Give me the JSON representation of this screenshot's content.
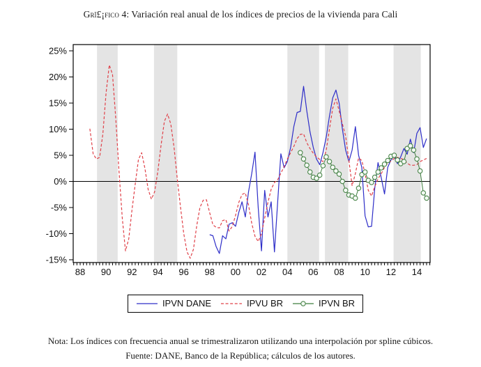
{
  "page": {
    "title_sc": "Grī£¡fico 4:",
    "title_rest": " Variación real anual de los índices de precios de la vivienda para Cali",
    "note1": "Nota: Los índices con frecuencia anual se trimestralizaron utilizando una interpolación por spline cúbicos.",
    "note2": "Fuente: DANE, Banco de la República; cálculos de los autores."
  },
  "legend": {
    "items": [
      {
        "label": "IPVN DANE",
        "color": "#2d2dc8",
        "line_style": "solid",
        "marker": "none"
      },
      {
        "label": "IPVU BR",
        "color": "#e04048",
        "line_style": "dashed",
        "marker": "none"
      },
      {
        "label": "IPVN BR",
        "color": "#3e7d3e",
        "line_style": "solid",
        "marker": "circle"
      }
    ]
  },
  "chart_data": {
    "type": "line",
    "title": "Variación real anual de los índices de precios de la vivienda para Cali",
    "xlabel": "",
    "ylabel": "",
    "x_unit": "year, quarterly observations",
    "xlim": [
      1987.45,
      2015.0
    ],
    "ylim": [
      -15.5,
      26.2
    ],
    "grid": false,
    "legend_position": "bottom-center",
    "band_color": "#e4e4e4",
    "shaded_bands": [
      [
        1989.3,
        1990.9
      ],
      [
        1993.7,
        1995.5
      ],
      [
        2004.0,
        2006.45
      ],
      [
        2006.9,
        2008.7
      ],
      [
        2012.2,
        2014.3
      ]
    ],
    "y_ticks": [
      {
        "v": 25,
        "label": "25%"
      },
      {
        "v": 20,
        "label": "20%"
      },
      {
        "v": 15,
        "label": "15%"
      },
      {
        "v": 10,
        "label": "10%"
      },
      {
        "v": 5,
        "label": "5%"
      },
      {
        "v": 0,
        "label": "0%"
      },
      {
        "v": -5,
        "label": "-5%"
      },
      {
        "v": -10,
        "label": "-10%"
      },
      {
        "v": -15,
        "label": "-15%"
      }
    ],
    "x_ticks": [
      {
        "v": 1988,
        "label": "88"
      },
      {
        "v": 1990,
        "label": "90"
      },
      {
        "v": 1992,
        "label": "92"
      },
      {
        "v": 1994,
        "label": "94"
      },
      {
        "v": 1996,
        "label": "96"
      },
      {
        "v": 1998,
        "label": "98"
      },
      {
        "v": 2000,
        "label": "00"
      },
      {
        "v": 2002,
        "label": "02"
      },
      {
        "v": 2004,
        "label": "04"
      },
      {
        "v": 2006,
        "label": "06"
      },
      {
        "v": 2008,
        "label": "08"
      },
      {
        "v": 2010,
        "label": "10"
      },
      {
        "v": 2012,
        "label": "12"
      },
      {
        "v": 2014,
        "label": "14"
      }
    ],
    "series": [
      {
        "name": "IPVN DANE",
        "color": "#2d2dc8",
        "line_style": "solid",
        "marker": "none",
        "points": [
          [
            1998.0,
            -10.2
          ],
          [
            1998.25,
            -10.4
          ],
          [
            1998.5,
            -12.5
          ],
          [
            1998.75,
            -13.8
          ],
          [
            1999.0,
            -10.4
          ],
          [
            1999.25,
            -11.0
          ],
          [
            1999.5,
            -8.2
          ],
          [
            1999.75,
            -7.9
          ],
          [
            2000.0,
            -8.6
          ],
          [
            2000.25,
            -5.9
          ],
          [
            2000.5,
            -3.9
          ],
          [
            2000.75,
            -6.8
          ],
          [
            2001.0,
            -2.0
          ],
          [
            2001.25,
            1.5
          ],
          [
            2001.5,
            5.6
          ],
          [
            2001.75,
            -5.0
          ],
          [
            2002.0,
            -13.3
          ],
          [
            2002.25,
            -1.7
          ],
          [
            2002.5,
            -6.8
          ],
          [
            2002.75,
            -3.9
          ],
          [
            2003.0,
            -13.5
          ],
          [
            2003.25,
            -4.0
          ],
          [
            2003.5,
            5.3
          ],
          [
            2003.75,
            2.6
          ],
          [
            2004.0,
            3.8
          ],
          [
            2004.25,
            6.5
          ],
          [
            2004.5,
            10.5
          ],
          [
            2004.75,
            13.2
          ],
          [
            2005.0,
            13.4
          ],
          [
            2005.25,
            18.2
          ],
          [
            2005.5,
            13.5
          ],
          [
            2005.75,
            9.5
          ],
          [
            2006.0,
            6.5
          ],
          [
            2006.25,
            4.3
          ],
          [
            2006.5,
            3.2
          ],
          [
            2006.75,
            5.5
          ],
          [
            2007.0,
            8.5
          ],
          [
            2007.25,
            12.5
          ],
          [
            2007.5,
            16.0
          ],
          [
            2007.75,
            17.5
          ],
          [
            2008.0,
            15.0
          ],
          [
            2008.25,
            10.0
          ],
          [
            2008.5,
            6.0
          ],
          [
            2008.75,
            3.8
          ],
          [
            2009.0,
            6.0
          ],
          [
            2009.25,
            10.5
          ],
          [
            2009.5,
            5.0
          ],
          [
            2009.75,
            2.7
          ],
          [
            2010.0,
            -6.6
          ],
          [
            2010.25,
            -8.7
          ],
          [
            2010.5,
            -8.6
          ],
          [
            2010.75,
            -1.3
          ],
          [
            2011.0,
            3.6
          ],
          [
            2011.25,
            0.7
          ],
          [
            2011.5,
            -2.4
          ],
          [
            2011.75,
            2.7
          ],
          [
            2012.0,
            4.1
          ],
          [
            2012.25,
            4.9
          ],
          [
            2012.5,
            3.4
          ],
          [
            2012.75,
            4.7
          ],
          [
            2013.0,
            6.3
          ],
          [
            2013.25,
            5.2
          ],
          [
            2013.5,
            8.1
          ],
          [
            2013.75,
            5.5
          ],
          [
            2014.0,
            9.2
          ],
          [
            2014.25,
            10.3
          ],
          [
            2014.5,
            6.5
          ],
          [
            2014.75,
            8.2
          ]
        ]
      },
      {
        "name": "IPVU BR",
        "color": "#e04048",
        "line_style": "dashed",
        "marker": "none",
        "points": [
          [
            1988.75,
            10.1
          ],
          [
            1989.0,
            5.3
          ],
          [
            1989.25,
            4.3
          ],
          [
            1989.5,
            4.6
          ],
          [
            1989.75,
            9.0
          ],
          [
            1990.0,
            17.0
          ],
          [
            1990.25,
            22.3
          ],
          [
            1990.5,
            20.5
          ],
          [
            1990.75,
            12.0
          ],
          [
            1991.0,
            2.0
          ],
          [
            1991.25,
            -7.0
          ],
          [
            1991.5,
            -13.3
          ],
          [
            1991.75,
            -11.0
          ],
          [
            1992.0,
            -5.5
          ],
          [
            1992.25,
            -0.5
          ],
          [
            1992.5,
            4.2
          ],
          [
            1992.75,
            5.5
          ],
          [
            1993.0,
            2.5
          ],
          [
            1993.25,
            -1.5
          ],
          [
            1993.5,
            -3.4
          ],
          [
            1993.75,
            -2.0
          ],
          [
            1994.0,
            2.0
          ],
          [
            1994.25,
            7.0
          ],
          [
            1994.5,
            11.5
          ],
          [
            1994.75,
            12.9
          ],
          [
            1995.0,
            11.0
          ],
          [
            1995.25,
            6.5
          ],
          [
            1995.5,
            0.5
          ],
          [
            1995.75,
            -5.0
          ],
          [
            1996.0,
            -10.0
          ],
          [
            1996.25,
            -13.5
          ],
          [
            1996.5,
            -14.7
          ],
          [
            1996.75,
            -13.0
          ],
          [
            1997.0,
            -8.5
          ],
          [
            1997.25,
            -5.0
          ],
          [
            1997.5,
            -3.6
          ],
          [
            1997.75,
            -3.5
          ],
          [
            1998.0,
            -6.0
          ],
          [
            1998.25,
            -8.3
          ],
          [
            1998.5,
            -8.8
          ],
          [
            1998.75,
            -8.9
          ],
          [
            1999.0,
            -7.5
          ],
          [
            1999.25,
            -7.3
          ],
          [
            1999.5,
            -9.5
          ],
          [
            1999.75,
            -8.6
          ],
          [
            2000.0,
            -6.5
          ],
          [
            2000.25,
            -4.0
          ],
          [
            2000.5,
            -2.5
          ],
          [
            2000.75,
            -2.2
          ],
          [
            2001.0,
            -4.5
          ],
          [
            2001.25,
            -8.0
          ],
          [
            2001.5,
            -10.5
          ],
          [
            2001.75,
            -11.5
          ],
          [
            2002.0,
            -10.0
          ],
          [
            2002.25,
            -7.0
          ],
          [
            2002.5,
            -4.0
          ],
          [
            2002.75,
            -1.5
          ],
          [
            2003.0,
            -0.2
          ],
          [
            2003.25,
            0.3
          ],
          [
            2003.5,
            1.6
          ],
          [
            2003.75,
            2.8
          ],
          [
            2004.0,
            4.3
          ],
          [
            2004.25,
            5.5
          ],
          [
            2004.5,
            6.7
          ],
          [
            2004.75,
            8.2
          ],
          [
            2005.0,
            9.0
          ],
          [
            2005.25,
            9.1
          ],
          [
            2005.5,
            7.4
          ],
          [
            2005.75,
            6.3
          ],
          [
            2006.0,
            5.4
          ],
          [
            2006.25,
            4.7
          ],
          [
            2006.5,
            4.2
          ],
          [
            2006.75,
            3.8
          ],
          [
            2007.0,
            6.0
          ],
          [
            2007.25,
            10.0
          ],
          [
            2007.5,
            14.0
          ],
          [
            2007.75,
            15.8
          ],
          [
            2008.0,
            13.5
          ],
          [
            2008.25,
            11.0
          ],
          [
            2008.5,
            8.7
          ],
          [
            2008.75,
            4.0
          ],
          [
            2009.0,
            -0.8
          ],
          [
            2009.25,
            1.5
          ],
          [
            2009.5,
            4.5
          ],
          [
            2009.75,
            4.0
          ],
          [
            2010.0,
            1.5
          ],
          [
            2010.25,
            -1.7
          ],
          [
            2010.5,
            -2.8
          ],
          [
            2010.75,
            -1.0
          ],
          [
            2011.0,
            0.5
          ],
          [
            2011.25,
            1.5
          ],
          [
            2011.5,
            2.7
          ],
          [
            2011.75,
            3.5
          ],
          [
            2012.0,
            3.9
          ],
          [
            2012.25,
            4.4
          ],
          [
            2012.5,
            4.6
          ],
          [
            2012.75,
            4.4
          ],
          [
            2013.0,
            4.2
          ],
          [
            2013.25,
            3.5
          ],
          [
            2013.5,
            3.1
          ],
          [
            2013.75,
            3.1
          ],
          [
            2014.0,
            3.2
          ],
          [
            2014.25,
            3.8
          ],
          [
            2014.5,
            4.1
          ],
          [
            2014.75,
            4.4
          ]
        ]
      },
      {
        "name": "IPVN BR",
        "color": "#3e7d3e",
        "line_style": "solid",
        "marker": "circle",
        "marker_fill": "#f3f9f3",
        "points": [
          [
            2005.0,
            5.5
          ],
          [
            2005.25,
            4.3
          ],
          [
            2005.5,
            3.1
          ],
          [
            2005.75,
            1.8
          ],
          [
            2006.0,
            0.8
          ],
          [
            2006.25,
            0.6
          ],
          [
            2006.5,
            1.2
          ],
          [
            2006.75,
            3.0
          ],
          [
            2007.0,
            4.7
          ],
          [
            2007.25,
            3.8
          ],
          [
            2007.5,
            2.7
          ],
          [
            2007.75,
            2.0
          ],
          [
            2008.0,
            1.4
          ],
          [
            2008.25,
            0.0
          ],
          [
            2008.5,
            -1.7
          ],
          [
            2008.75,
            -2.6
          ],
          [
            2009.0,
            -2.8
          ],
          [
            2009.25,
            -3.2
          ],
          [
            2009.5,
            -1.3
          ],
          [
            2009.75,
            1.3
          ],
          [
            2010.0,
            1.8
          ],
          [
            2010.25,
            0.2
          ],
          [
            2010.5,
            -0.2
          ],
          [
            2010.75,
            0.8
          ],
          [
            2011.0,
            1.8
          ],
          [
            2011.25,
            2.6
          ],
          [
            2011.5,
            3.3
          ],
          [
            2011.75,
            4.0
          ],
          [
            2012.0,
            4.8
          ],
          [
            2012.25,
            5.0
          ],
          [
            2012.5,
            4.1
          ],
          [
            2012.75,
            3.4
          ],
          [
            2013.0,
            3.8
          ],
          [
            2013.25,
            6.3
          ],
          [
            2013.5,
            6.8
          ],
          [
            2013.75,
            6.0
          ],
          [
            2014.0,
            4.3
          ],
          [
            2014.25,
            2.0
          ],
          [
            2014.5,
            -2.2
          ],
          [
            2014.75,
            -3.2
          ]
        ]
      }
    ]
  }
}
